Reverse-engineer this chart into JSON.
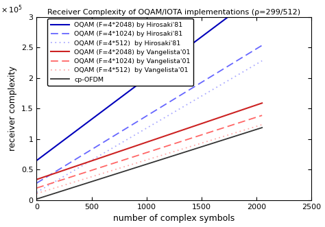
{
  "title": "Receiver Complexity of OQAM/IOTA implementations (ρ=299/512)",
  "xlabel": "number of complex symbols",
  "ylabel": "receiver complexity",
  "xlim": [
    0,
    2500
  ],
  "ylim": [
    0,
    300000
  ],
  "lines": [
    {
      "label": "OQAM (F=4*2048) by Hirosaki'81",
      "color": "#0000bb",
      "linestyle": "solid",
      "linewidth": 1.5,
      "intercept": 65000,
      "slope": 135
    },
    {
      "label": "OQAM (F=4*1024) by Hirosaki'81",
      "color": "#6666ff",
      "linestyle": "dashed",
      "linewidth": 1.3,
      "intercept": 28000,
      "slope": 110
    },
    {
      "label": "OQAM (F=4*512)  by Hirosaki'81",
      "color": "#aaaaff",
      "linestyle": "dotted",
      "linewidth": 1.3,
      "intercept": 13000,
      "slope": 105
    },
    {
      "label": "OQAM (F=4*2048) by Vangelista'01",
      "color": "#cc2222",
      "linestyle": "solid",
      "linewidth": 1.5,
      "intercept": 34000,
      "slope": 61
    },
    {
      "label": "OQAM (F=4*1024) by Vangelista'01",
      "color": "#ff6666",
      "linestyle": "dashed",
      "linewidth": 1.3,
      "intercept": 20000,
      "slope": 58
    },
    {
      "label": "OQAM (F=4*512)  by Vangelista'01",
      "color": "#ffaaaa",
      "linestyle": "dotted",
      "linewidth": 1.3,
      "intercept": 11000,
      "slope": 55
    },
    {
      "label": "cp-OFDM",
      "color": "#333333",
      "linestyle": "solid",
      "linewidth": 1.3,
      "intercept": 2000,
      "slope": 57
    }
  ],
  "ytick_labels": [
    "0",
    "0.5",
    "1",
    "1.5",
    "2",
    "2.5",
    "3"
  ],
  "ytick_values": [
    0,
    50000,
    100000,
    150000,
    200000,
    250000,
    300000
  ],
  "xtick_values": [
    0,
    500,
    1000,
    1500,
    2000,
    2500
  ],
  "xtick_labels": [
    "0",
    "500",
    "1000",
    "1500",
    "2000",
    "2500"
  ]
}
